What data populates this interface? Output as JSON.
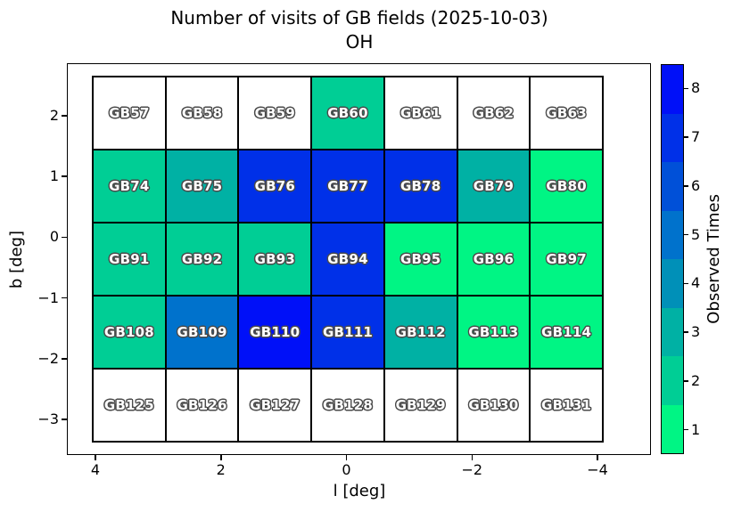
{
  "title": "Number of visits of GB fields (2025-10-03)",
  "subtitle": "OH",
  "chart_data": {
    "type": "heatmap",
    "title": "Number of visits of GB fields (2025-10-03)",
    "subtitle": "OH",
    "xlabel": "l [deg]",
    "ylabel": "b [deg]",
    "x_axis_inverted": true,
    "xlim": [
      4.6,
      -4.8
    ],
    "ylim": [
      -3.55,
      2.85
    ],
    "x_tick_labels": [
      "4",
      "2",
      "0",
      "−2",
      "−4"
    ],
    "y_tick_labels": [
      "2",
      "1",
      "0",
      "−1",
      "−2",
      "−3"
    ],
    "grid_shape": {
      "columns": 7,
      "rows": 5
    },
    "colorbar": {
      "label": "Observed Times",
      "tick_labels": [
        "1",
        "2",
        "3",
        "4",
        "5",
        "6",
        "7",
        "8"
      ],
      "orientation": "vertical"
    },
    "palette": {
      "0": "#FFFFFF",
      "1": "#00F584",
      "2": "#00CE95",
      "3": "#00B1A4",
      "4": "#0090B8",
      "5": "#0072CC",
      "6": "#0050D8",
      "7": "#0030E8",
      "8": "#0010F8"
    },
    "rows": [
      {
        "fields": [
          {
            "name": "GB57",
            "visits": 0
          },
          {
            "name": "GB58",
            "visits": 0
          },
          {
            "name": "GB59",
            "visits": 0
          },
          {
            "name": "GB60",
            "visits": 2
          },
          {
            "name": "GB61",
            "visits": 0
          },
          {
            "name": "GB62",
            "visits": 0
          },
          {
            "name": "GB63",
            "visits": 0
          }
        ]
      },
      {
        "fields": [
          {
            "name": "GB74",
            "visits": 2
          },
          {
            "name": "GB75",
            "visits": 3
          },
          {
            "name": "GB76",
            "visits": 7
          },
          {
            "name": "GB77",
            "visits": 7
          },
          {
            "name": "GB78",
            "visits": 7
          },
          {
            "name": "GB79",
            "visits": 3
          },
          {
            "name": "GB80",
            "visits": 1
          }
        ]
      },
      {
        "fields": [
          {
            "name": "GB91",
            "visits": 2
          },
          {
            "name": "GB92",
            "visits": 2
          },
          {
            "name": "GB93",
            "visits": 2
          },
          {
            "name": "GB94",
            "visits": 7
          },
          {
            "name": "GB95",
            "visits": 1
          },
          {
            "name": "GB96",
            "visits": 1
          },
          {
            "name": "GB97",
            "visits": 1
          }
        ]
      },
      {
        "fields": [
          {
            "name": "GB108",
            "visits": 2
          },
          {
            "name": "GB109",
            "visits": 5
          },
          {
            "name": "GB110",
            "visits": 8
          },
          {
            "name": "GB111",
            "visits": 7
          },
          {
            "name": "GB112",
            "visits": 3
          },
          {
            "name": "GB113",
            "visits": 1
          },
          {
            "name": "GB114",
            "visits": 1
          }
        ]
      },
      {
        "fields": [
          {
            "name": "GB125",
            "visits": 0
          },
          {
            "name": "GB126",
            "visits": 0
          },
          {
            "name": "GB127",
            "visits": 0
          },
          {
            "name": "GB128",
            "visits": 0
          },
          {
            "name": "GB129",
            "visits": 0
          },
          {
            "name": "GB130",
            "visits": 0
          },
          {
            "name": "GB131",
            "visits": 0
          }
        ]
      }
    ]
  }
}
